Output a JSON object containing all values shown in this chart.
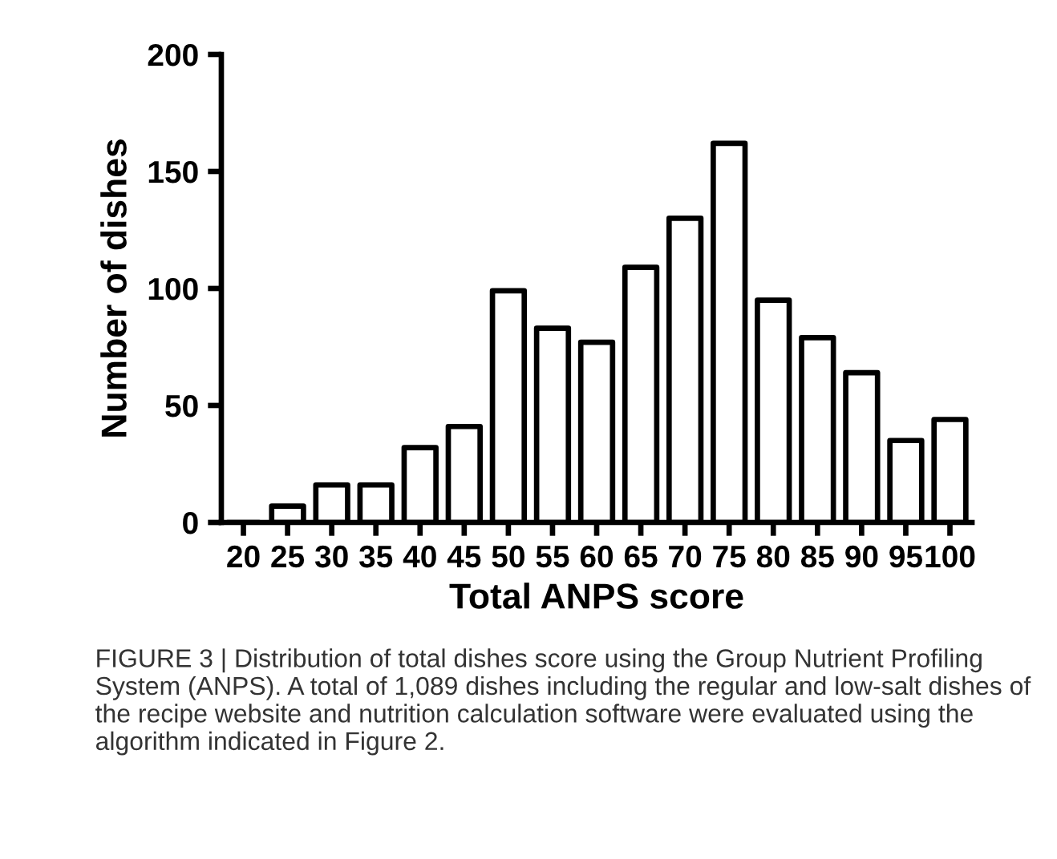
{
  "chart_data": {
    "type": "bar",
    "xlabel": "Total ANPS score",
    "ylabel": "Number of dishes",
    "categories": [
      "20",
      "25",
      "30",
      "35",
      "40",
      "45",
      "50",
      "55",
      "60",
      "65",
      "70",
      "75",
      "80",
      "85",
      "90",
      "95",
      "100"
    ],
    "values": [
      0,
      7,
      16,
      16,
      32,
      41,
      99,
      83,
      77,
      109,
      130,
      162,
      95,
      79,
      64,
      35,
      44
    ],
    "color": "#ffffff",
    "ylim": [
      0,
      200
    ],
    "yticks": [
      0,
      50,
      100,
      150,
      200
    ],
    "grid": false,
    "legend": false,
    "annotations": [
      "FIGURE 3 | Distribution of total dishes score using the Group Nutrient Profiling System (ANPS). A total of 1,089 dishes including the regular and low-salt dishes of the recipe website and nutrition calculation software were evaluated using the algorithm indicated in Figure 2."
    ]
  }
}
